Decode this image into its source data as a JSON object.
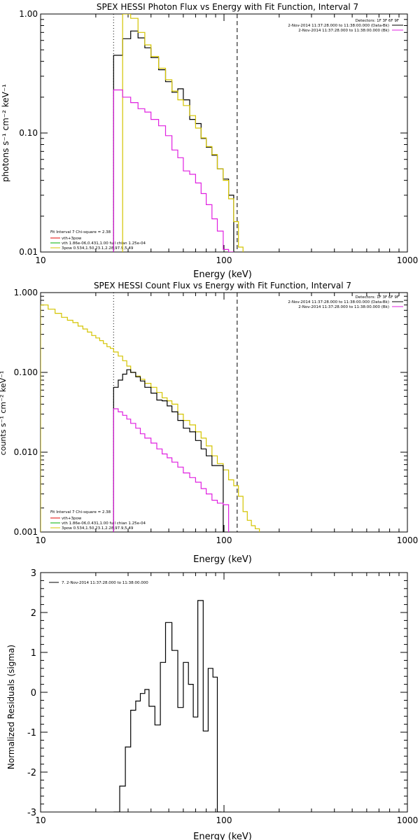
{
  "colors": {
    "black": "#000000",
    "yellow": "#d4c400",
    "magenta": "#e020e0",
    "green": "#00b000",
    "red": "#e00000"
  },
  "panels": [
    {
      "title": "SPEX HESSI Photon Flux vs Energy with Fit Function, Interval 7",
      "xlabel": "Energy (keV)",
      "ylabel": "photons s⁻¹ cm⁻² keV⁻¹",
      "xticks": [
        "10",
        "100",
        "1000"
      ],
      "yticks": [
        "1.00",
        "0.10",
        "0.01"
      ],
      "info_right": [
        "Detectors: 1F 3F 6F 9F",
        "2-Nov-2014 11:37:28.000 to 11:38:00.000 (Data-Bk)",
        "2-Nov-2014 11:37:28.000 to 11:38:00.000 (Bk)"
      ],
      "legend": [
        "Fit Interval 7   Chi-square = 2.38",
        "vth+3pow",
        "vth 1.86e-06,0.431,1.00  full chian 1.25e-04",
        "3pow 0.534,1.50,23.1,2.28,97.9,5.49"
      ]
    },
    {
      "title": "SPEX HESSI Count Flux vs Energy with Fit Function, Interval 7",
      "xlabel": "Energy (keV)",
      "ylabel": "counts s⁻¹ cm⁻² keV⁻¹",
      "xticks": [
        "10",
        "100",
        "1000"
      ],
      "yticks": [
        "1.000",
        "0.100",
        "0.010",
        "0.001"
      ],
      "info_right": [
        "Detectors: 1F 3F 6F 9F",
        "2-Nov-2014 11:37:28.000 to 11:38:00.000 (Data-Bk)",
        "2-Nov-2014 11:37:28.000 to 11:38:00.000 (Bk)"
      ],
      "legend": [
        "Fit Interval 7   Chi-square = 2.38",
        "vth+3pow",
        "vth 1.86e-06,0.431,1.00  full chian 1.25e-04",
        "3pow 0.534,1.50,23.1,2.28,97.9,5.49"
      ]
    },
    {
      "title": "",
      "xlabel": "Energy (keV)",
      "ylabel": "Normalized Residuals (sigma)",
      "xticks": [
        "10",
        "100",
        "1000"
      ],
      "yticks": [
        "3",
        "2",
        "1",
        "0",
        "-1",
        "-2",
        "-3"
      ],
      "legend": [
        "7. 2-Nov-2014 11:37:28.000 to 11:38:00.000"
      ]
    }
  ],
  "chart_data": [
    {
      "type": "line",
      "title": "SPEX HESSI Photon Flux vs Energy with Fit Function, Interval 7",
      "xlabel": "Energy (keV)",
      "ylabel": "photons s⁻¹ cm⁻² keV⁻¹",
      "xscale": "log",
      "yscale": "log",
      "xlim": [
        10,
        1000
      ],
      "ylim": [
        0.01,
        1.0
      ],
      "vlines": [
        {
          "x": 25,
          "style": "dotted"
        },
        {
          "x": 118,
          "style": "dashed"
        }
      ],
      "edges": [
        25,
        28,
        31,
        34,
        37,
        40,
        44,
        48,
        52,
        56,
        60,
        65,
        70,
        75,
        80,
        86,
        92,
        99,
        106,
        113,
        120,
        127
      ],
      "series": [
        {
          "name": "Data-Bk",
          "color": "black",
          "values": [
            0.45,
            0.62,
            0.72,
            0.63,
            0.52,
            0.43,
            0.34,
            0.27,
            0.22,
            0.235,
            0.19,
            0.13,
            0.12,
            0.09,
            0.076,
            0.065,
            0.05,
            0.041,
            0.03,
            null,
            null
          ]
        },
        {
          "name": "vth+3pow",
          "color": "yellow",
          "values": [
            null,
            1.2,
            0.92,
            0.7,
            0.55,
            0.44,
            0.35,
            0.28,
            0.225,
            0.19,
            0.17,
            0.14,
            0.11,
            0.091,
            0.077,
            0.066,
            0.05,
            0.04,
            0.028,
            0.018,
            0.011
          ]
        },
        {
          "name": "Bk",
          "color": "magenta",
          "values": [
            0.23,
            0.2,
            0.18,
            0.16,
            0.15,
            0.13,
            0.115,
            0.095,
            0.072,
            0.062,
            0.048,
            0.045,
            0.038,
            0.031,
            0.025,
            0.019,
            0.015,
            0.0105,
            0.0098,
            null,
            null
          ]
        }
      ]
    },
    {
      "type": "line",
      "title": "SPEX HESSI Count Flux vs Energy with Fit Function, Interval 7",
      "xlabel": "Energy (keV)",
      "xscale": "log",
      "yscale": "log",
      "xlim": [
        10,
        1000
      ],
      "ylim": [
        0.001,
        1.0
      ],
      "vlines": [
        {
          "x": 25,
          "style": "dotted"
        },
        {
          "x": 118,
          "style": "dashed"
        }
      ],
      "edges": [
        10,
        11,
        12,
        13,
        14,
        15,
        16,
        17,
        18,
        19,
        20,
        21,
        22,
        23,
        24,
        25,
        26.5,
        28,
        29.5,
        31,
        33,
        35,
        37,
        40,
        43,
        46,
        49,
        52,
        56,
        60,
        65,
        70,
        75,
        80,
        86,
        92,
        99,
        106,
        113,
        120,
        127,
        134,
        141,
        148,
        156
      ],
      "series": [
        {
          "name": "vth+3pow",
          "color": "yellow",
          "values": [
            0.7,
            0.62,
            0.55,
            0.49,
            0.45,
            0.42,
            0.38,
            0.35,
            0.32,
            0.29,
            0.27,
            0.25,
            0.23,
            0.21,
            0.2,
            0.18,
            0.16,
            0.14,
            0.12,
            0.1,
            0.09,
            0.082,
            0.073,
            0.065,
            0.056,
            0.048,
            0.044,
            0.04,
            0.03,
            0.025,
            0.022,
            0.018,
            0.015,
            0.012,
            0.009,
            0.0072,
            0.006,
            0.0045,
            0.0038,
            0.0028,
            0.0018,
            0.0014,
            0.0012,
            0.0011
          ]
        },
        {
          "name": "Data-Bk",
          "color": "black",
          "values": [
            null,
            null,
            null,
            null,
            null,
            null,
            null,
            null,
            null,
            null,
            null,
            null,
            null,
            null,
            null,
            0.065,
            0.08,
            0.095,
            0.108,
            0.1,
            0.088,
            0.078,
            0.065,
            0.055,
            0.045,
            0.044,
            0.038,
            0.032,
            0.025,
            0.02,
            0.018,
            0.014,
            0.011,
            0.009,
            0.0068,
            0.0068,
            null,
            null,
            null,
            null,
            null,
            null,
            null,
            null
          ]
        },
        {
          "name": "Bk",
          "color": "magenta",
          "values": [
            null,
            null,
            null,
            null,
            null,
            null,
            null,
            null,
            null,
            null,
            null,
            null,
            null,
            null,
            null,
            0.035,
            0.032,
            0.029,
            0.026,
            0.023,
            0.02,
            0.017,
            0.015,
            0.013,
            0.011,
            0.0095,
            0.0085,
            0.0075,
            0.0065,
            0.0055,
            0.0048,
            0.0042,
            0.0035,
            0.003,
            0.0025,
            0.0023,
            0.0022,
            null,
            null,
            null,
            null,
            null,
            null,
            null
          ]
        }
      ]
    },
    {
      "type": "line",
      "xlabel": "Energy (keV)",
      "ylabel": "Normalized Residuals (sigma)",
      "xscale": "log",
      "xlim": [
        10,
        1000
      ],
      "ylim": [
        -3,
        3
      ],
      "edges": [
        25,
        27,
        29,
        31,
        33,
        35,
        37,
        39,
        42,
        45,
        48,
        52,
        56,
        60,
        64,
        68,
        72,
        77,
        82,
        87,
        92,
        97,
        103,
        109,
        116
      ],
      "series": [
        {
          "name": "7. 2-Nov-2014 11:37:28.000 to 11:38:00.000",
          "color": "black",
          "values": [
            -3.2,
            -2.35,
            -1.37,
            -0.45,
            -0.22,
            -0.03,
            0.07,
            -0.35,
            -0.82,
            0.75,
            1.75,
            1.05,
            -0.38,
            0.75,
            0.2,
            -0.62,
            2.3,
            -0.97,
            0.6,
            0.38,
            -3.2,
            null,
            null,
            null
          ]
        }
      ]
    }
  ]
}
